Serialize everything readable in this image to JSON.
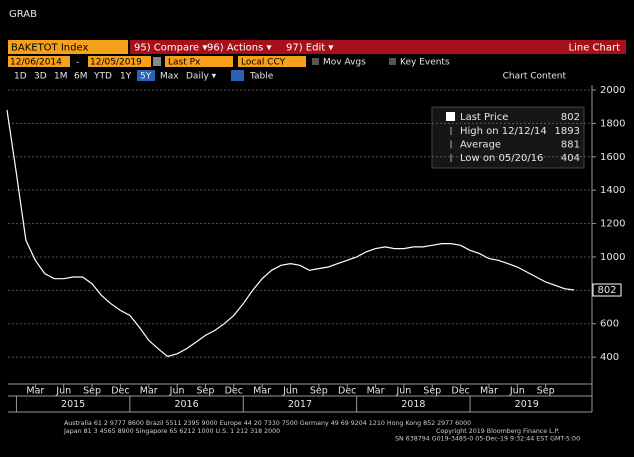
{
  "header": {
    "title": "GRAB"
  },
  "toolbar": {
    "security": "BAKETOT Index",
    "menus": [
      "95) Compare ▾",
      "96) Actions ▾",
      "97) Edit ▾"
    ],
    "view": "Line Chart"
  },
  "settings": {
    "start": "12/06/2014",
    "dash": "-",
    "end": "12/05/2019",
    "price": "Last Px",
    "currency": "Local CCY",
    "checks": [
      "Mov Avgs",
      "Key Events"
    ]
  },
  "ranges": {
    "buttons": [
      "1D",
      "3D",
      "1M",
      "6M",
      "YTD",
      "1Y",
      "5Y",
      "Max"
    ],
    "active": "5Y",
    "frequency": "Daily ▾",
    "table": "Table",
    "content": "Chart Content"
  },
  "chart_data": {
    "type": "line",
    "x": [
      "2014-12",
      "2015-01",
      "2015-02",
      "2015-03",
      "2015-04",
      "2015-05",
      "2015-06",
      "2015-07",
      "2015-08",
      "2015-09",
      "2015-10",
      "2015-11",
      "2015-12",
      "2016-01",
      "2016-02",
      "2016-03",
      "2016-04",
      "2016-05",
      "2016-06",
      "2016-07",
      "2016-08",
      "2016-09",
      "2016-10",
      "2016-11",
      "2016-12",
      "2017-01",
      "2017-02",
      "2017-03",
      "2017-04",
      "2017-05",
      "2017-06",
      "2017-07",
      "2017-08",
      "2017-09",
      "2017-10",
      "2017-11",
      "2017-12",
      "2018-01",
      "2018-02",
      "2018-03",
      "2018-04",
      "2018-05",
      "2018-06",
      "2018-07",
      "2018-08",
      "2018-09",
      "2018-10",
      "2018-11",
      "2018-12",
      "2019-01",
      "2019-02",
      "2019-03",
      "2019-04",
      "2019-05",
      "2019-06",
      "2019-07",
      "2019-08",
      "2019-09",
      "2019-10",
      "2019-11",
      "2019-12"
    ],
    "series": [
      {
        "name": "Last Price",
        "color": "#ffffff",
        "values": [
          1880,
          1500,
          1100,
          980,
          900,
          870,
          870,
          880,
          880,
          840,
          770,
          720,
          680,
          650,
          580,
          500,
          450,
          404,
          420,
          450,
          490,
          530,
          560,
          600,
          650,
          720,
          800,
          870,
          920,
          950,
          960,
          950,
          920,
          930,
          940,
          960,
          980,
          1000,
          1030,
          1050,
          1060,
          1050,
          1050,
          1060,
          1060,
          1070,
          1080,
          1080,
          1070,
          1040,
          1020,
          990,
          980,
          960,
          940,
          910,
          880,
          850,
          830,
          810,
          802
        ]
      }
    ],
    "ylim": [
      245,
      2030
    ],
    "yticks": [
      400,
      600,
      800,
      1000,
      1200,
      1400,
      1600,
      1800,
      2000
    ],
    "grid": true,
    "xticks": [
      {
        "value": "2015-03",
        "label": "Mar"
      },
      {
        "value": "2015-06",
        "label": "Jun"
      },
      {
        "value": "2015-09",
        "label": "Sep"
      },
      {
        "value": "2015-12",
        "label": "Dec"
      },
      {
        "value": "2016-03",
        "label": "Mar"
      },
      {
        "value": "2016-06",
        "label": "Jun"
      },
      {
        "value": "2016-09",
        "label": "Sep"
      },
      {
        "value": "2016-12",
        "label": "Dec"
      },
      {
        "value": "2017-03",
        "label": "Mar"
      },
      {
        "value": "2017-06",
        "label": "Jun"
      },
      {
        "value": "2017-09",
        "label": "Sep"
      },
      {
        "value": "2017-12",
        "label": "Dec"
      },
      {
        "value": "2018-03",
        "label": "Mar"
      },
      {
        "value": "2018-06",
        "label": "Jun"
      },
      {
        "value": "2018-09",
        "label": "Sep"
      },
      {
        "value": "2018-12",
        "label": "Dec"
      },
      {
        "value": "2019-03",
        "label": "Mar"
      },
      {
        "value": "2019-06",
        "label": "Jun"
      },
      {
        "value": "2019-09",
        "label": "Sep"
      }
    ],
    "xgroups": [
      {
        "value": "2015-07",
        "label": "2015"
      },
      {
        "value": "2016-07",
        "label": "2016"
      },
      {
        "value": "2017-07",
        "label": "2017"
      },
      {
        "value": "2018-07",
        "label": "2018"
      },
      {
        "value": "2019-07",
        "label": "2019"
      }
    ],
    "last_value": 802,
    "legend": {
      "last": 802,
      "stats": [
        {
          "label": "High on 12/12/14",
          "value": 1893
        },
        {
          "label": "Average",
          "value": 881
        },
        {
          "label": "Low on 05/20/16",
          "value": 404
        }
      ]
    }
  },
  "footer": {
    "lines": [
      "Australia 61 2 9777 8600 Brazil 5511 2395 9000 Europe 44 20 7330 7500 Germany 49 69 9204 1210 Hong Kong 852 2977 6000",
      "Japan 81 3 4565 8900      Singapore 65 6212 1000      U.S. 1 212 318 2000",
      "Copyright 2019 Bloomberg Finance L.P.",
      "SN 638794 G019-3485-0 05-Dec-19  9:32:44 EST  GMT-5:00"
    ]
  }
}
